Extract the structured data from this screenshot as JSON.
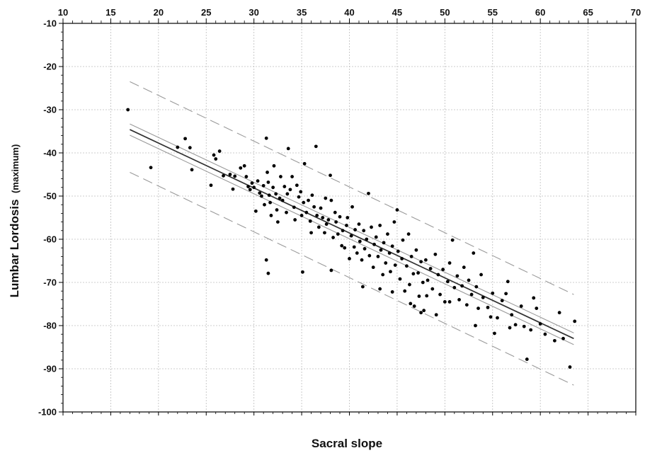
{
  "chart_data": {
    "type": "scatter",
    "title": "",
    "xlabel": "Sacral slope",
    "ylabel_main": "Lumbar Lordosis",
    "ylabel_sub": "(maximum)",
    "xlim": [
      10,
      70
    ],
    "ylim": [
      -100,
      -10
    ],
    "x_ticks": [
      10,
      15,
      20,
      25,
      30,
      35,
      40,
      45,
      50,
      55,
      60,
      65,
      70
    ],
    "y_ticks": [
      -10,
      -20,
      -30,
      -40,
      -50,
      -60,
      -70,
      -80,
      -90,
      -100
    ],
    "x_tick_labels": [
      "10",
      "15",
      "20",
      "25",
      "30",
      "35",
      "40",
      "45",
      "50",
      "55",
      "60",
      "65",
      "70"
    ],
    "y_tick_labels": [
      "-10",
      "-20",
      "-30",
      "-40",
      "-50",
      "-60",
      "-70",
      "-80",
      "-90",
      "-100"
    ],
    "x_axis_position": "top",
    "grid": true,
    "colors": {
      "points": "#000000",
      "fit": "#333333",
      "confidence": "#9a9a9a",
      "prediction": "#9a9a9a",
      "grid": "#bdbdbd"
    },
    "fit_line": {
      "x": [
        17,
        63.5
      ],
      "y": [
        -34.6,
        -83.0
      ]
    },
    "confidence_band": {
      "upper": {
        "x": [
          17,
          63.5
        ],
        "y": [
          -33.3,
          -81.7
        ]
      },
      "lower": {
        "x": [
          17,
          63.5
        ],
        "y": [
          -35.9,
          -84.4
        ]
      }
    },
    "prediction_band": {
      "upper": {
        "x": [
          17,
          63.5
        ],
        "y": [
          -23.5,
          -72.8
        ]
      },
      "lower": {
        "x": [
          17,
          63.5
        ],
        "y": [
          -44.5,
          -93.8
        ]
      }
    },
    "points": [
      [
        16.8,
        -30.0
      ],
      [
        19.2,
        -43.4
      ],
      [
        22.0,
        -38.7
      ],
      [
        22.8,
        -36.7
      ],
      [
        23.3,
        -38.8
      ],
      [
        23.5,
        -43.9
      ],
      [
        25.5,
        -47.5
      ],
      [
        25.8,
        -40.5
      ],
      [
        26.0,
        -41.4
      ],
      [
        26.4,
        -39.6
      ],
      [
        26.8,
        -45.3
      ],
      [
        27.5,
        -45.0
      ],
      [
        27.8,
        -48.4
      ],
      [
        28.0,
        -45.4
      ],
      [
        28.6,
        -43.5
      ],
      [
        29.0,
        -43.0
      ],
      [
        29.2,
        -45.5
      ],
      [
        29.4,
        -47.8
      ],
      [
        29.6,
        -48.5
      ],
      [
        29.8,
        -47.0
      ],
      [
        30.0,
        -48.0
      ],
      [
        30.2,
        -53.5
      ],
      [
        30.4,
        -46.5
      ],
      [
        30.6,
        -49.3
      ],
      [
        30.8,
        -50.0
      ],
      [
        31.0,
        -47.6
      ],
      [
        31.1,
        -52.0
      ],
      [
        31.3,
        -36.6
      ],
      [
        31.4,
        -44.5
      ],
      [
        31.5,
        -46.8
      ],
      [
        31.6,
        -49.8
      ],
      [
        31.7,
        -51.5
      ],
      [
        31.8,
        -54.5
      ],
      [
        32.0,
        -48.0
      ],
      [
        32.1,
        -43.0
      ],
      [
        32.3,
        -49.5
      ],
      [
        32.4,
        -53.2
      ],
      [
        32.5,
        -56.0
      ],
      [
        32.7,
        -50.5
      ],
      [
        32.8,
        -45.5
      ],
      [
        33.0,
        -51.0
      ],
      [
        33.2,
        -47.8
      ],
      [
        33.4,
        -53.8
      ],
      [
        33.5,
        -49.5
      ],
      [
        33.6,
        -39.0
      ],
      [
        33.8,
        -48.5
      ],
      [
        34.0,
        -45.5
      ],
      [
        34.2,
        -52.6
      ],
      [
        34.3,
        -55.5
      ],
      [
        34.5,
        -47.5
      ],
      [
        34.7,
        -50.2
      ],
      [
        34.9,
        -49.0
      ],
      [
        35.0,
        -54.5
      ],
      [
        35.2,
        -51.5
      ],
      [
        35.3,
        -42.5
      ],
      [
        35.5,
        -53.8
      ],
      [
        35.7,
        -51.0
      ],
      [
        35.9,
        -55.8
      ],
      [
        36.0,
        -58.5
      ],
      [
        36.1,
        -49.8
      ],
      [
        36.3,
        -52.5
      ],
      [
        36.5,
        -38.5
      ],
      [
        36.6,
        -54.5
      ],
      [
        36.8,
        -57.2
      ],
      [
        37.0,
        -52.8
      ],
      [
        37.2,
        -55.0
      ],
      [
        37.4,
        -58.5
      ],
      [
        37.5,
        -50.5
      ],
      [
        37.6,
        -56.5
      ],
      [
        37.8,
        -55.5
      ],
      [
        38.0,
        -45.2
      ],
      [
        38.1,
        -51.0
      ],
      [
        38.3,
        -59.6
      ],
      [
        38.5,
        -53.8
      ],
      [
        38.6,
        -56.0
      ],
      [
        38.8,
        -58.8
      ],
      [
        39.0,
        -54.8
      ],
      [
        39.2,
        -61.5
      ],
      [
        39.3,
        -58.0
      ],
      [
        39.5,
        -62.0
      ],
      [
        39.7,
        -56.8
      ],
      [
        39.8,
        -55.0
      ],
      [
        40.0,
        -64.5
      ],
      [
        40.2,
        -59.2
      ],
      [
        40.3,
        -52.5
      ],
      [
        40.5,
        -61.8
      ],
      [
        40.6,
        -57.8
      ],
      [
        40.8,
        -63.2
      ],
      [
        41.0,
        -56.5
      ],
      [
        41.1,
        -60.5
      ],
      [
        41.3,
        -64.8
      ],
      [
        41.5,
        -58.0
      ],
      [
        41.6,
        -62.2
      ],
      [
        41.8,
        -60.0
      ],
      [
        42.0,
        -49.4
      ],
      [
        42.1,
        -63.8
      ],
      [
        42.3,
        -57.2
      ],
      [
        42.5,
        -66.5
      ],
      [
        42.6,
        -61.2
      ],
      [
        42.8,
        -59.5
      ],
      [
        43.0,
        -64.0
      ],
      [
        43.2,
        -56.8
      ],
      [
        43.3,
        -62.5
      ],
      [
        43.5,
        -68.2
      ],
      [
        43.6,
        -60.8
      ],
      [
        43.8,
        -65.5
      ],
      [
        44.0,
        -58.8
      ],
      [
        44.2,
        -63.2
      ],
      [
        44.3,
        -67.5
      ],
      [
        44.5,
        -61.6
      ],
      [
        44.7,
        -56.0
      ],
      [
        44.8,
        -66.0
      ],
      [
        45.0,
        -53.2
      ],
      [
        45.1,
        -62.8
      ],
      [
        45.3,
        -69.2
      ],
      [
        45.5,
        -64.5
      ],
      [
        45.6,
        -60.2
      ],
      [
        45.8,
        -72.0
      ],
      [
        46.0,
        -66.2
      ],
      [
        46.2,
        -58.8
      ],
      [
        46.3,
        -70.5
      ],
      [
        46.5,
        -64.0
      ],
      [
        46.7,
        -68.0
      ],
      [
        46.8,
        -75.5
      ],
      [
        47.0,
        -62.5
      ],
      [
        47.2,
        -67.8
      ],
      [
        47.3,
        -73.2
      ],
      [
        47.5,
        -65.2
      ],
      [
        47.7,
        -70.0
      ],
      [
        47.8,
        -76.5
      ],
      [
        48.0,
        -64.8
      ],
      [
        48.2,
        -69.5
      ],
      [
        48.5,
        -66.8
      ],
      [
        48.7,
        -71.5
      ],
      [
        49.0,
        -63.5
      ],
      [
        49.3,
        -68.2
      ],
      [
        49.5,
        -72.8
      ],
      [
        49.8,
        -67.0
      ],
      [
        50.0,
        -74.5
      ],
      [
        50.3,
        -69.8
      ],
      [
        50.5,
        -65.5
      ],
      [
        50.8,
        -60.2
      ],
      [
        51.0,
        -71.2
      ],
      [
        51.3,
        -68.5
      ],
      [
        51.5,
        -74.0
      ],
      [
        51.8,
        -70.8
      ],
      [
        52.0,
        -66.5
      ],
      [
        52.3,
        -75.2
      ],
      [
        52.5,
        -69.5
      ],
      [
        52.8,
        -72.8
      ],
      [
        53.0,
        -63.2
      ],
      [
        53.3,
        -71.0
      ],
      [
        53.5,
        -76.0
      ],
      [
        53.8,
        -68.2
      ],
      [
        54.0,
        -73.5
      ],
      [
        54.5,
        -75.8
      ],
      [
        55.0,
        -72.5
      ],
      [
        55.2,
        -81.8
      ],
      [
        55.5,
        -78.2
      ],
      [
        56.0,
        -74.2
      ],
      [
        56.4,
        -72.6
      ],
      [
        56.6,
        -69.8
      ],
      [
        57.0,
        -77.5
      ],
      [
        57.4,
        -79.8
      ],
      [
        58.0,
        -75.5
      ],
      [
        58.6,
        -87.8
      ],
      [
        59.0,
        -81.0
      ],
      [
        59.3,
        -73.6
      ],
      [
        59.6,
        -76.0
      ],
      [
        60.0,
        -79.6
      ],
      [
        62.0,
        -77.0
      ],
      [
        62.4,
        -83.0
      ],
      [
        63.1,
        -89.6
      ],
      [
        63.6,
        -79.0
      ],
      [
        60.5,
        -82.0
      ],
      [
        61.5,
        -83.5
      ],
      [
        58.3,
        -80.2
      ],
      [
        54.8,
        -78.0
      ],
      [
        56.8,
        -80.5
      ],
      [
        53.2,
        -80.0
      ],
      [
        31.3,
        -64.8
      ],
      [
        31.5,
        -67.9
      ],
      [
        35.1,
        -67.6
      ],
      [
        38.1,
        -67.2
      ],
      [
        41.4,
        -71.0
      ],
      [
        43.2,
        -71.5
      ],
      [
        44.5,
        -72.2
      ],
      [
        46.4,
        -74.9
      ],
      [
        47.5,
        -77.0
      ],
      [
        49.1,
        -77.5
      ],
      [
        50.5,
        -74.5
      ],
      [
        48.1,
        -73.1
      ]
    ]
  }
}
